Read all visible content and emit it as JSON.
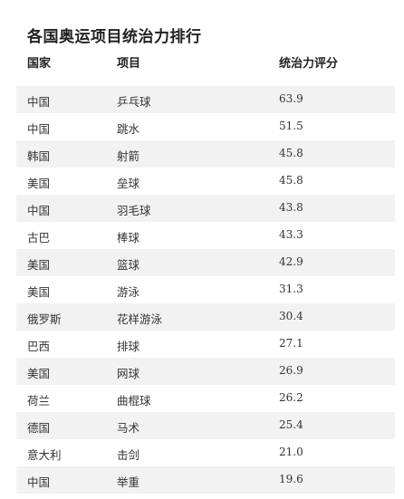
{
  "chart_data": {
    "type": "table",
    "title": "各国奥运项目统治力排行",
    "columns": [
      "国家",
      "项目",
      "统治力评分"
    ],
    "rows": [
      {
        "country": "中国",
        "sport": "乒乓球",
        "score": "63.9"
      },
      {
        "country": "中国",
        "sport": "跳水",
        "score": "51.5"
      },
      {
        "country": "韩国",
        "sport": "射箭",
        "score": "45.8"
      },
      {
        "country": "美国",
        "sport": "垒球",
        "score": "45.8"
      },
      {
        "country": "中国",
        "sport": "羽毛球",
        "score": "43.8"
      },
      {
        "country": "古巴",
        "sport": "棒球",
        "score": "43.3"
      },
      {
        "country": "美国",
        "sport": "篮球",
        "score": "42.9"
      },
      {
        "country": "美国",
        "sport": "游泳",
        "score": "31.3"
      },
      {
        "country": "俄罗斯",
        "sport": "花样游泳",
        "score": "30.4"
      },
      {
        "country": "巴西",
        "sport": "排球",
        "score": "27.1"
      },
      {
        "country": "美国",
        "sport": "网球",
        "score": "26.9"
      },
      {
        "country": "荷兰",
        "sport": "曲棍球",
        "score": "26.2"
      },
      {
        "country": "德国",
        "sport": "马术",
        "score": "25.4"
      },
      {
        "country": "意大利",
        "sport": "击剑",
        "score": "21.0"
      },
      {
        "country": "中国",
        "sport": "举重",
        "score": "19.6"
      }
    ]
  },
  "colors": {
    "row_shade": "#f2f2f2",
    "text": "#333333",
    "heading": "#222222"
  }
}
